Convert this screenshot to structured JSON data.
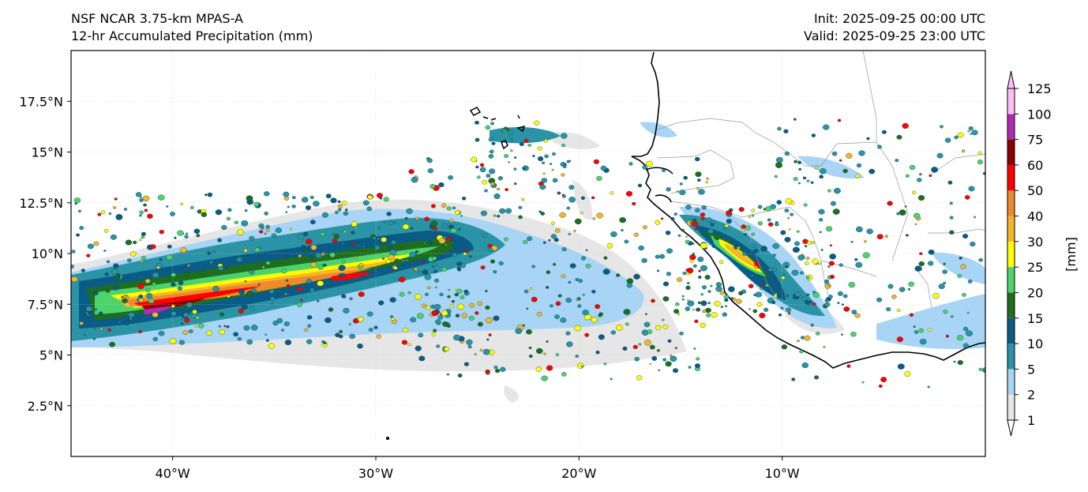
{
  "header": {
    "model": "NSF NCAR 3.75-km MPAS-A",
    "product": "12-hr Accumulated Precipitation (mm)",
    "init": "Init: 2025-09-25 00:00 UTC",
    "valid": "Valid: 2025-09-25 23:00 UTC"
  },
  "map": {
    "lon_range": [
      -45,
      0
    ],
    "lat_range": [
      0,
      20
    ],
    "lat_ticks": [
      {
        "value": 17.5,
        "label": "17.5°N"
      },
      {
        "value": 15,
        "label": "15°N"
      },
      {
        "value": 12.5,
        "label": "12.5°N"
      },
      {
        "value": 10,
        "label": "10°N"
      },
      {
        "value": 7.5,
        "label": "7.5°N"
      },
      {
        "value": 5,
        "label": "5°N"
      },
      {
        "value": 2.5,
        "label": "2.5°N"
      }
    ],
    "lon_ticks": [
      {
        "value": -40,
        "label": "40°W"
      },
      {
        "value": -30,
        "label": "30°W"
      },
      {
        "value": -20,
        "label": "20°W"
      },
      {
        "value": -10,
        "label": "10°W"
      }
    ],
    "grid": true
  },
  "colorbar": {
    "unit_label": "[mm]",
    "levels": [
      "1",
      "2",
      "5",
      "10",
      "15",
      "20",
      "25",
      "30",
      "40",
      "50",
      "60",
      "75",
      "100",
      "125"
    ],
    "colors": [
      "#e6e6e6",
      "#a8d4f5",
      "#2a94a6",
      "#0b5b87",
      "#1e6e1e",
      "#4cd36b",
      "#ffff00",
      "#f7b52a",
      "#ee8a2c",
      "#ff0000",
      "#8b0000",
      "#b32ab3",
      "#ffbff5"
    ],
    "under_color": "#ffffff",
    "over_color": "#ffbff5"
  }
}
